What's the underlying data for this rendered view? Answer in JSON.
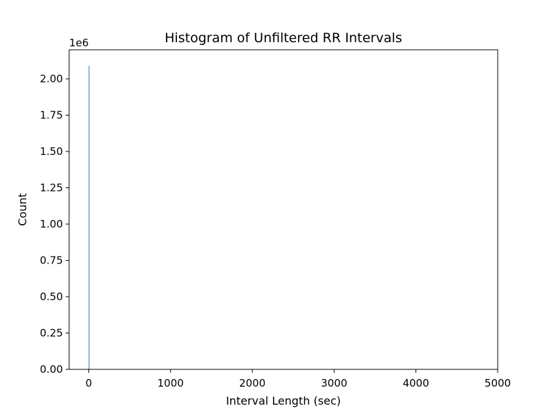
{
  "chart_data": {
    "type": "bar",
    "title": "Histogram of Unfiltered RR Intervals",
    "xlabel": "Interval Length (sec)",
    "ylabel": "Count",
    "y_offset_label": "1e6",
    "xlim": [
      -240,
      5000
    ],
    "ylim": [
      0,
      2.2
    ],
    "x_ticks": [
      0,
      1000,
      2000,
      3000,
      4000,
      5000
    ],
    "y_ticks": [
      0.0,
      0.25,
      0.5,
      0.75,
      1.0,
      1.25,
      1.5,
      1.75,
      2.0
    ],
    "x_tick_labels": [
      "0",
      "1000",
      "2000",
      "3000",
      "4000",
      "5000"
    ],
    "y_tick_labels": [
      "0.00",
      "0.25",
      "0.50",
      "0.75",
      "1.00",
      "1.25",
      "1.50",
      "1.75",
      "2.00"
    ],
    "bins": [
      {
        "x_start": 0,
        "x_end": 4,
        "count": 2.09
      }
    ],
    "bar_color": "#1f77b4",
    "grid": false,
    "legend": "none"
  }
}
